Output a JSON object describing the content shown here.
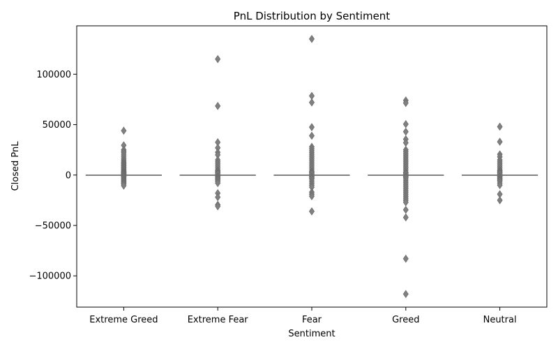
{
  "chart_data": {
    "type": "box",
    "title": "PnL Distribution by Sentiment",
    "xlabel": "Sentiment",
    "ylabel": "Closed PnL",
    "categories": [
      "Extreme Greed",
      "Extreme Fear",
      "Fear",
      "Greed",
      "Neutral"
    ],
    "ylim": [
      -131000,
      148000
    ],
    "yticks": [
      -100000,
      -50000,
      0,
      50000,
      100000
    ],
    "ytick_labels": [
      "−100000",
      "−50000",
      "0",
      "50000",
      "100000"
    ],
    "box_color": "#808080",
    "grid": false,
    "legend": "none",
    "series": [
      {
        "category": "Extreme Greed",
        "median": 0,
        "q1": 0,
        "q3": 0,
        "whisker_low": 0,
        "whisker_high": 0,
        "outliers": [
          44000,
          29500,
          25000,
          23500,
          22000,
          20000,
          18000,
          16000,
          14500,
          13000,
          12000,
          11000,
          10000,
          9000,
          8000,
          7000,
          6000,
          5000,
          4000,
          3500,
          3000,
          2500,
          2000,
          1500,
          1000,
          500,
          -500,
          -1000,
          -1500,
          -2000,
          -3000,
          -4000,
          -5000,
          -6000,
          -7000,
          -8000,
          -9000,
          -10500
        ]
      },
      {
        "category": "Extreme Fear",
        "median": 0,
        "q1": 0,
        "q3": 0,
        "whisker_low": 0,
        "whisker_high": 0,
        "outliers": [
          115000,
          68500,
          32500,
          27000,
          22500,
          20000,
          15000,
          13000,
          11000,
          9000,
          7000,
          5000,
          4000,
          3000,
          2000,
          1000,
          -1000,
          -2000,
          -3000,
          -4000,
          -5000,
          -6500,
          -8000,
          -18000,
          -22000,
          -29500,
          -31000
        ]
      },
      {
        "category": "Fear",
        "median": 0,
        "q1": 0,
        "q3": 0,
        "whisker_low": 0,
        "whisker_high": 0,
        "outliers": [
          135000,
          78500,
          72000,
          47500,
          39000,
          28000,
          26000,
          24000,
          22000,
          20000,
          18000,
          16000,
          14000,
          12000,
          10000,
          8000,
          6000,
          4000,
          3000,
          2000,
          1000,
          -1000,
          -2000,
          -3000,
          -4000,
          -6000,
          -8000,
          -10000,
          -12000,
          -17000,
          -19000,
          -21000,
          -36000
        ]
      },
      {
        "category": "Greed",
        "median": 0,
        "q1": 0,
        "q3": 0,
        "whisker_low": 0,
        "whisker_high": 0,
        "outliers": [
          74000,
          71500,
          50500,
          43000,
          35500,
          32000,
          25000,
          23000,
          21000,
          19000,
          17000,
          15000,
          13000,
          11000,
          9000,
          7000,
          5000,
          3000,
          2000,
          1000,
          -1000,
          -2000,
          -3000,
          -5000,
          -7000,
          -9000,
          -11000,
          -13000,
          -15000,
          -17000,
          -19000,
          -21000,
          -23000,
          -25000,
          -27000,
          -34500,
          -42000,
          -83000,
          -118000
        ]
      },
      {
        "category": "Neutral",
        "median": 0,
        "q1": 0,
        "q3": 0,
        "whisker_low": 0,
        "whisker_high": 0,
        "outliers": [
          48000,
          33000,
          20500,
          18000,
          15000,
          13000,
          11000,
          9000,
          7000,
          5000,
          4000,
          3000,
          2000,
          1000,
          -1000,
          -2000,
          -3000,
          -4000,
          -5000,
          -6000,
          -8000,
          -10000,
          -19000,
          -25000
        ]
      }
    ]
  }
}
